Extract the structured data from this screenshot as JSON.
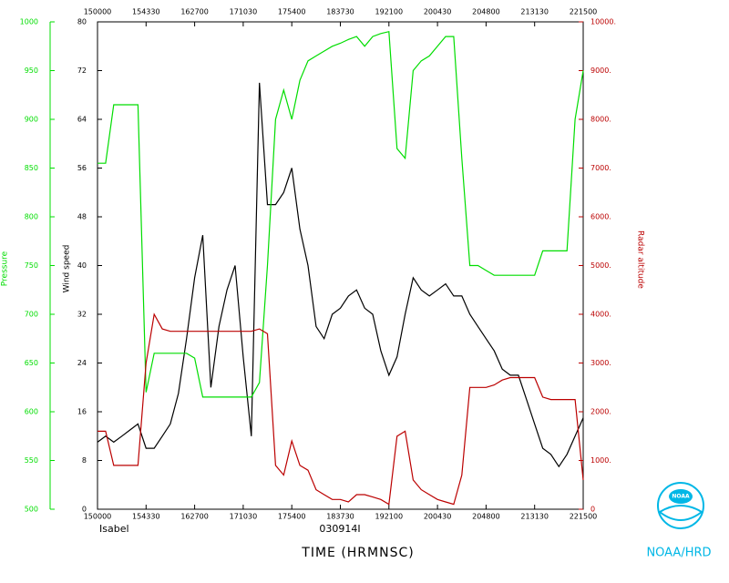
{
  "chart_data": {
    "type": "line",
    "title": "TIME (HRMNSC)",
    "storm": "Isabel",
    "flight": "030914I",
    "agency": "NOAA/HRD",
    "logo_text": "NOAA",
    "xlim": [
      150000,
      221500
    ],
    "xticks": [
      150000,
      154330,
      162700,
      171030,
      175400,
      183730,
      192100,
      200430,
      204800,
      213130,
      221500
    ],
    "ylabel": "Wind speed",
    "ylim": [
      0,
      80
    ],
    "yticks": [
      0,
      8,
      16,
      24,
      32,
      40,
      48,
      56,
      64,
      72,
      80
    ],
    "y2label": "Pressure",
    "y2lim": [
      500,
      1000
    ],
    "y2ticks": [
      500,
      550,
      600,
      650,
      700,
      750,
      800,
      850,
      900,
      950,
      1000
    ],
    "y3label": "Radar altitude",
    "y3lim": [
      0,
      10000
    ],
    "y3ticks": [
      0,
      {
        "value": 1000,
        "label": "1000."
      },
      {
        "value": 2000,
        "label": "2000."
      },
      {
        "value": 3000,
        "label": "3000."
      },
      {
        "value": 4000,
        "label": "4000."
      },
      {
        "value": 5000,
        "label": "5000."
      },
      {
        "value": 6000,
        "label": "6000."
      },
      {
        "value": 7000,
        "label": "7000."
      },
      {
        "value": 8000,
        "label": "8000."
      },
      {
        "value": 9000,
        "label": "9000."
      },
      {
        "value": 10000,
        "label": "10000."
      }
    ],
    "x": [
      150000,
      150715,
      151430,
      152145,
      152900,
      153615,
      154330,
      155045,
      155800,
      160515,
      161230,
      161945,
      162700,
      163415,
      164130,
      164845,
      165600,
      170315,
      171030,
      171745,
      172500,
      173215,
      173930,
      174645,
      175400,
      180115,
      180830,
      181545,
      182300,
      183015,
      183730,
      184445,
      185200,
      185915,
      190630,
      191345,
      192100,
      192815,
      193530,
      194245,
      195000,
      195715,
      200430,
      201145,
      201900,
      202615,
      203330,
      204045,
      204800,
      205515,
      210230,
      210945,
      211700,
      212415,
      213130,
      213845,
      214600,
      215315,
      220030,
      220745,
      221500
    ],
    "series": [
      {
        "name": "Wind speed",
        "axis": "y",
        "color": "#000000",
        "values": [
          11,
          12,
          11,
          12,
          13,
          14,
          10,
          10,
          12,
          14,
          19,
          28,
          38,
          45,
          20,
          30,
          36,
          40,
          25,
          12,
          70,
          50,
          50,
          52,
          56,
          46,
          40,
          30,
          28,
          32,
          33,
          35,
          36,
          33,
          32,
          26,
          22,
          25,
          32,
          38,
          36,
          35,
          36,
          37,
          35,
          35,
          32,
          30,
          28,
          26,
          23,
          22,
          22,
          18,
          14,
          10,
          9,
          7,
          9,
          12,
          15
        ]
      },
      {
        "name": "Pressure",
        "axis": "y2",
        "color": "#00dd00",
        "values": [
          855,
          855,
          915,
          915,
          915,
          915,
          620,
          660,
          660,
          660,
          660,
          660,
          655,
          615,
          615,
          615,
          615,
          615,
          615,
          615,
          630,
          750,
          900,
          930,
          900,
          940,
          960,
          965,
          970,
          975,
          978,
          982,
          985,
          975,
          985,
          988,
          990,
          870,
          860,
          950,
          960,
          965,
          975,
          985,
          985,
          860,
          750,
          750,
          745,
          740,
          740,
          740,
          740,
          740,
          740,
          765,
          765,
          765,
          765,
          900,
          950
        ]
      },
      {
        "name": "Radar altitude",
        "axis": "y3",
        "color": "#bb0000",
        "values": [
          1600,
          1600,
          900,
          900,
          900,
          900,
          3000,
          4000,
          3700,
          3650,
          3650,
          3650,
          3650,
          3650,
          3650,
          3650,
          3650,
          3650,
          3650,
          3650,
          3700,
          3600,
          900,
          700,
          1400,
          900,
          800,
          400,
          300,
          200,
          200,
          150,
          300,
          300,
          250,
          200,
          100,
          1500,
          1600,
          600,
          400,
          300,
          200,
          150,
          100,
          700,
          2500,
          2500,
          2500,
          2550,
          2650,
          2700,
          2700,
          2700,
          2700,
          2300,
          2250,
          2250,
          2250,
          2250,
          600
        ]
      }
    ]
  }
}
